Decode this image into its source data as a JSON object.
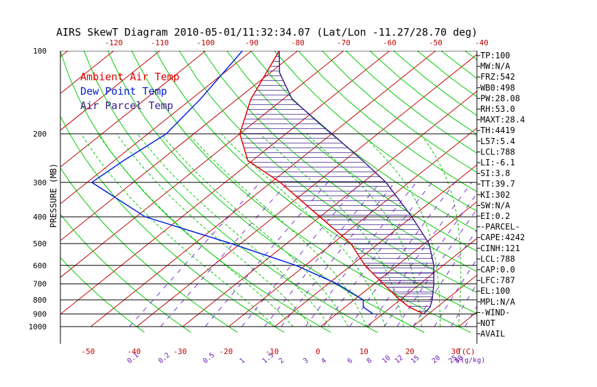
{
  "title": "AIRS SkewT Diagram 2010-05-01/11:32:34.07 (Lat/Lon -11.27/28.70 deg)",
  "colors": {
    "isotherm": "#c00000",
    "dry_adiabat": "#00c800",
    "moist_adiabat": "#00c800",
    "mixing_ratio": "#7a2bd0",
    "ambient": "#e00000",
    "dewpoint": "#0020e0",
    "parcel": "#3a1a8a",
    "hatch": "#3a1a8a",
    "axis": "#000000"
  },
  "chart_data": {
    "type": "skew-t",
    "title": "AIRS SkewT Diagram 2010-05-01/11:32:34.07 (Lat/Lon -11.27/28.70 deg)",
    "ylabel": "PRESSURE (MB)",
    "xlabel": "T(C)",
    "mixing_ratio_unit": "(g/kg)",
    "pressure_ticks": [
      100,
      200,
      300,
      400,
      500,
      600,
      700,
      800,
      900,
      1000
    ],
    "top_temp_ticks": [
      -120,
      -110,
      -100,
      -90,
      -80,
      -70,
      -60,
      -50,
      -40
    ],
    "bottom_temp_ticks": [
      -50,
      -40,
      -30,
      -20,
      -10,
      0,
      10,
      20,
      30
    ],
    "mixing_ratio_ticks": [
      "0.1",
      "0.2",
      "0.5",
      "1",
      "1.5",
      "2",
      "3",
      "4",
      "6",
      "8",
      "10",
      "12",
      "15",
      "20",
      "25",
      "30",
      "40"
    ],
    "legend": [
      {
        "name": "Ambient Air Temp",
        "color": "#e00000"
      },
      {
        "name": "Dew Point Temp",
        "color": "#0020e0"
      },
      {
        "name": "Air Parcel Temp",
        "color": "#3a1a8a"
      }
    ],
    "series": [
      {
        "name": "Ambient Air Temp",
        "points": [
          [
            100,
            -84
          ],
          [
            150,
            -77
          ],
          [
            200,
            -70
          ],
          [
            250,
            -61
          ],
          [
            300,
            -48
          ],
          [
            400,
            -30
          ],
          [
            500,
            -16
          ],
          [
            600,
            -7
          ],
          [
            700,
            2
          ],
          [
            800,
            10
          ],
          [
            850,
            14
          ],
          [
            900,
            19
          ]
        ]
      },
      {
        "name": "Dew Point Temp",
        "points": [
          [
            100,
            -92
          ],
          [
            150,
            -88
          ],
          [
            200,
            -86
          ],
          [
            250,
            -88
          ],
          [
            300,
            -89
          ],
          [
            400,
            -68
          ],
          [
            500,
            -42
          ],
          [
            600,
            -22
          ],
          [
            700,
            -8
          ],
          [
            800,
            2
          ],
          [
            850,
            4
          ],
          [
            900,
            8
          ]
        ]
      },
      {
        "name": "Air Parcel Temp",
        "points": [
          [
            100,
            -84
          ],
          [
            120,
            -78
          ],
          [
            150,
            -68
          ],
          [
            200,
            -50
          ],
          [
            250,
            -36
          ],
          [
            300,
            -25
          ],
          [
            400,
            -10
          ],
          [
            500,
            1
          ],
          [
            600,
            8
          ],
          [
            700,
            13
          ],
          [
            800,
            17
          ],
          [
            850,
            18.5
          ],
          [
            900,
            19
          ]
        ]
      }
    ],
    "indices": [
      "TP:100",
      "MW:N/A",
      "FRZ:542",
      "WB0:498",
      "PW:28.08",
      "RH:53.0",
      "MAXT:28.4",
      "TH:4419",
      "L57:5.4",
      "LCL:788",
      "LI:-6.1",
      "SI:3.8",
      "TT:39.7",
      "KI:302",
      "SW:N/A",
      "EI:0.2",
      "-PARCEL-",
      "CAPE:4242",
      "CINH:121",
      "LCL:788",
      "CAP:0.0",
      "LFC:787",
      "EL:100",
      "MPL:N/A",
      "-WIND-",
      "NOT",
      "AVAIL"
    ]
  }
}
